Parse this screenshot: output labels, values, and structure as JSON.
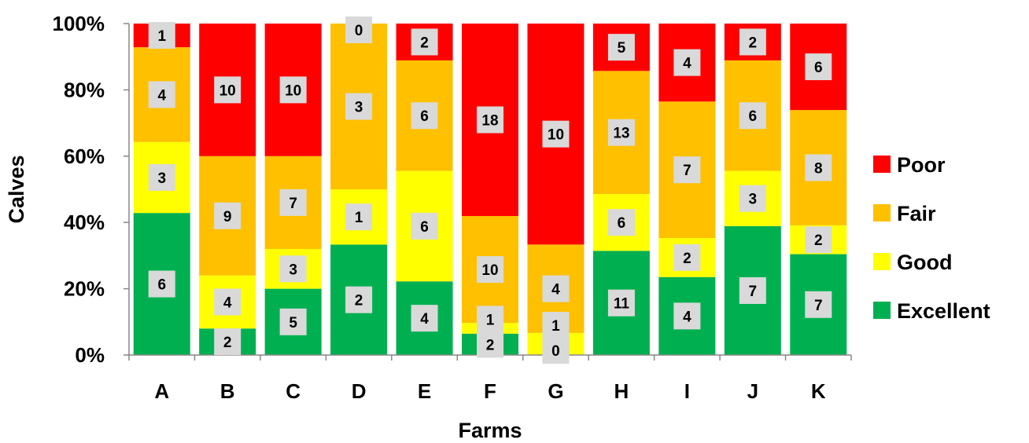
{
  "chart_data": {
    "type": "bar",
    "stacking": "percent",
    "title": "",
    "xlabel": "Farms",
    "ylabel": "Calves",
    "ylim": [
      0,
      100
    ],
    "yticks": [
      "0%",
      "20%",
      "40%",
      "60%",
      "80%",
      "100%"
    ],
    "grid": false,
    "legend_position": "right",
    "categories": [
      "A",
      "B",
      "C",
      "D",
      "E",
      "F",
      "G",
      "H",
      "I",
      "J",
      "K"
    ],
    "series": [
      {
        "name": "Excellent",
        "color": "#00B050",
        "values": [
          6,
          2,
          5,
          2,
          4,
          2,
          0,
          11,
          4,
          7,
          7
        ]
      },
      {
        "name": "Good",
        "color": "#FFFF00",
        "values": [
          3,
          4,
          3,
          1,
          6,
          1,
          1,
          6,
          2,
          3,
          2
        ]
      },
      {
        "name": "Fair",
        "color": "#FFC000",
        "values": [
          4,
          9,
          7,
          3,
          6,
          10,
          4,
          13,
          7,
          6,
          8
        ]
      },
      {
        "name": "Poor",
        "color": "#FF0000",
        "values": [
          1,
          10,
          10,
          0,
          2,
          18,
          10,
          5,
          4,
          2,
          6
        ]
      }
    ],
    "legend_order": [
      "Poor",
      "Fair",
      "Good",
      "Excellent"
    ]
  }
}
